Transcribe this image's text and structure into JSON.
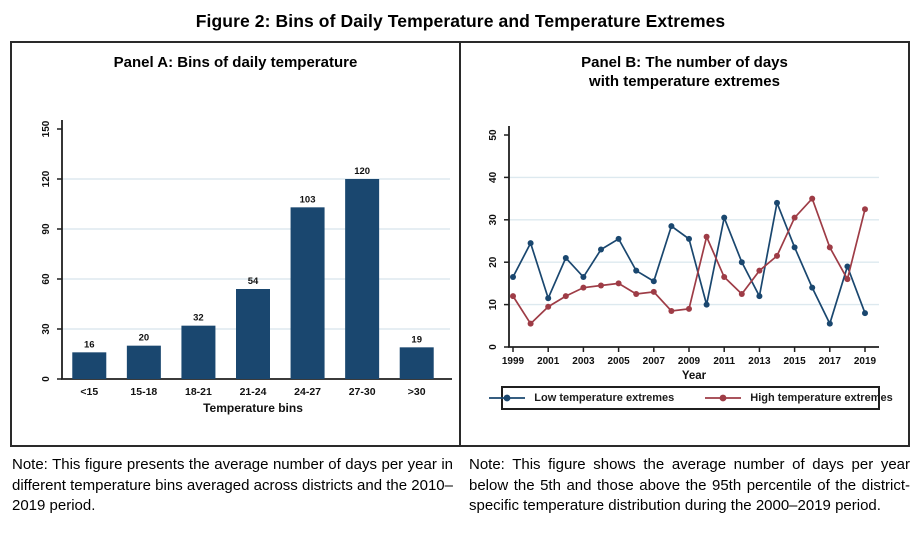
{
  "figure_title": "Figure 2: Bins of Daily Temperature and Temperature Extremes",
  "panel_a": {
    "title": "Panel A: Bins of daily temperature",
    "note": "Note: This figure presents the average number of days per year in different temperature bins averaged across districts and the 2010–2019 period.",
    "chart_data": {
      "type": "bar",
      "categories": [
        "<15",
        "15-18",
        "18-21",
        "21-24",
        "24-27",
        "27-30",
        ">30"
      ],
      "values": [
        16,
        20,
        32,
        54,
        103,
        120,
        19
      ],
      "bar_labels": [
        "16",
        "20",
        "32",
        "54",
        "103",
        "120",
        "19"
      ],
      "title": "",
      "xlabel": "Temperature bins",
      "ylabel": "",
      "ylim": [
        0,
        150
      ],
      "yticks": [
        0,
        30,
        60,
        90,
        120,
        150
      ],
      "grid": true,
      "bar_color": "#1a476f"
    }
  },
  "panel_b": {
    "title": "Panel B: The number of days\nwith temperature extremes",
    "note": "Note: This figure shows the average number of days per year below the 5th and those above the 95th percentile of the district-specific temperature distribution during the 2000–2019 period.",
    "chart_data": {
      "type": "line",
      "x": [
        1999,
        2000,
        2001,
        2002,
        2003,
        2004,
        2005,
        2006,
        2007,
        2008,
        2009,
        2010,
        2011,
        2012,
        2013,
        2014,
        2015,
        2016,
        2017,
        2018,
        2019
      ],
      "xticks": [
        1999,
        2001,
        2003,
        2005,
        2007,
        2009,
        2011,
        2013,
        2015,
        2017,
        2019
      ],
      "xlabel": "Year",
      "ylabel": "",
      "ylim": [
        0,
        50
      ],
      "yticks": [
        0,
        10,
        20,
        30,
        40,
        50
      ],
      "grid": true,
      "legend_position": "bottom",
      "series": [
        {
          "name": "Low temperature extremes",
          "color": "#1a476f",
          "values": [
            16.5,
            24.5,
            11.5,
            21,
            16.5,
            23,
            25.5,
            18,
            15.5,
            28.5,
            25.5,
            10,
            30.5,
            20,
            12,
            34,
            23.5,
            14,
            5.5,
            19,
            8
          ]
        },
        {
          "name": "High temperature extremes",
          "color": "#9e3c46",
          "values": [
            12,
            5.5,
            9.5,
            12,
            14,
            14.5,
            15,
            12.5,
            13,
            8.5,
            9,
            26,
            16.5,
            12.5,
            18,
            21.5,
            30.5,
            35,
            23.5,
            16,
            32.5
          ]
        }
      ]
    }
  },
  "colors": {
    "grid_line": "#dde9ef",
    "axis_line": "#1f1f1f"
  }
}
